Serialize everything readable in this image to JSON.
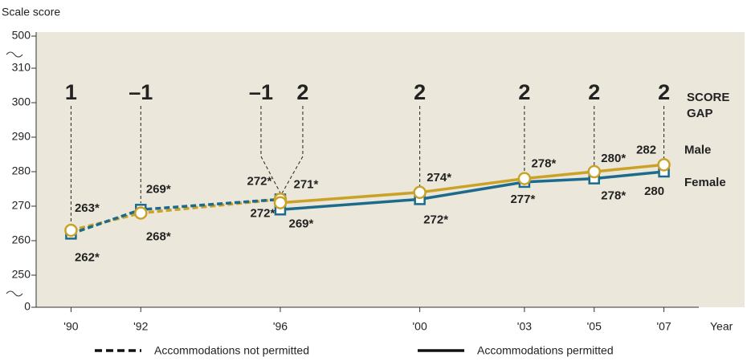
{
  "chart_data": {
    "type": "line",
    "y_label": "Scale score",
    "x_label": "Year",
    "x": [
      1990,
      1992,
      1996,
      1996,
      2000,
      2003,
      2005,
      2007
    ],
    "permitted": [
      false,
      false,
      false,
      true,
      true,
      true,
      true,
      true
    ],
    "series": [
      {
        "name": "Male",
        "color": "#c9a227",
        "marker": "circle",
        "values": [
          263,
          268,
          272,
          271,
          274,
          278,
          280,
          282
        ],
        "value_labels": [
          "263*",
          "268*",
          "272*",
          "271*",
          "274*",
          "278*",
          "280*",
          "282"
        ]
      },
      {
        "name": "Female",
        "color": "#1d6b8c",
        "marker": "square",
        "values": [
          262,
          269,
          272,
          269,
          272,
          277,
          278,
          280
        ],
        "value_labels": [
          "262*",
          "269*",
          "272*",
          "269*",
          "272*",
          "277*",
          "278*",
          "280"
        ]
      }
    ],
    "score_gap": {
      "label": "SCORE GAP",
      "values": [
        1,
        -1,
        -1,
        2,
        2,
        2,
        2,
        2
      ],
      "value_labels": [
        "1",
        "–1",
        "–1",
        "2",
        "2",
        "2",
        "2",
        "2"
      ]
    },
    "legend": [
      {
        "name": "Accommodations not permitted",
        "dashed": true
      },
      {
        "name": "Accommodations permitted",
        "dashed": false
      }
    ],
    "xlim": [
      1989,
      2008
    ],
    "xticks": [
      {
        "value": 1990,
        "label": "'90"
      },
      {
        "value": 1992,
        "label": "'92"
      },
      {
        "value": 1996,
        "label": "'96"
      },
      {
        "value": 2000,
        "label": "'00"
      },
      {
        "value": 2003,
        "label": "'03"
      },
      {
        "value": 2005,
        "label": "'05"
      },
      {
        "value": 2007,
        "label": "'07"
      }
    ],
    "ylim": [
      0,
      500
    ],
    "axis_breaks": [
      [
        0,
        250
      ],
      [
        310,
        500
      ]
    ],
    "yticks": [
      0,
      250,
      260,
      270,
      280,
      290,
      300,
      310,
      500
    ]
  }
}
